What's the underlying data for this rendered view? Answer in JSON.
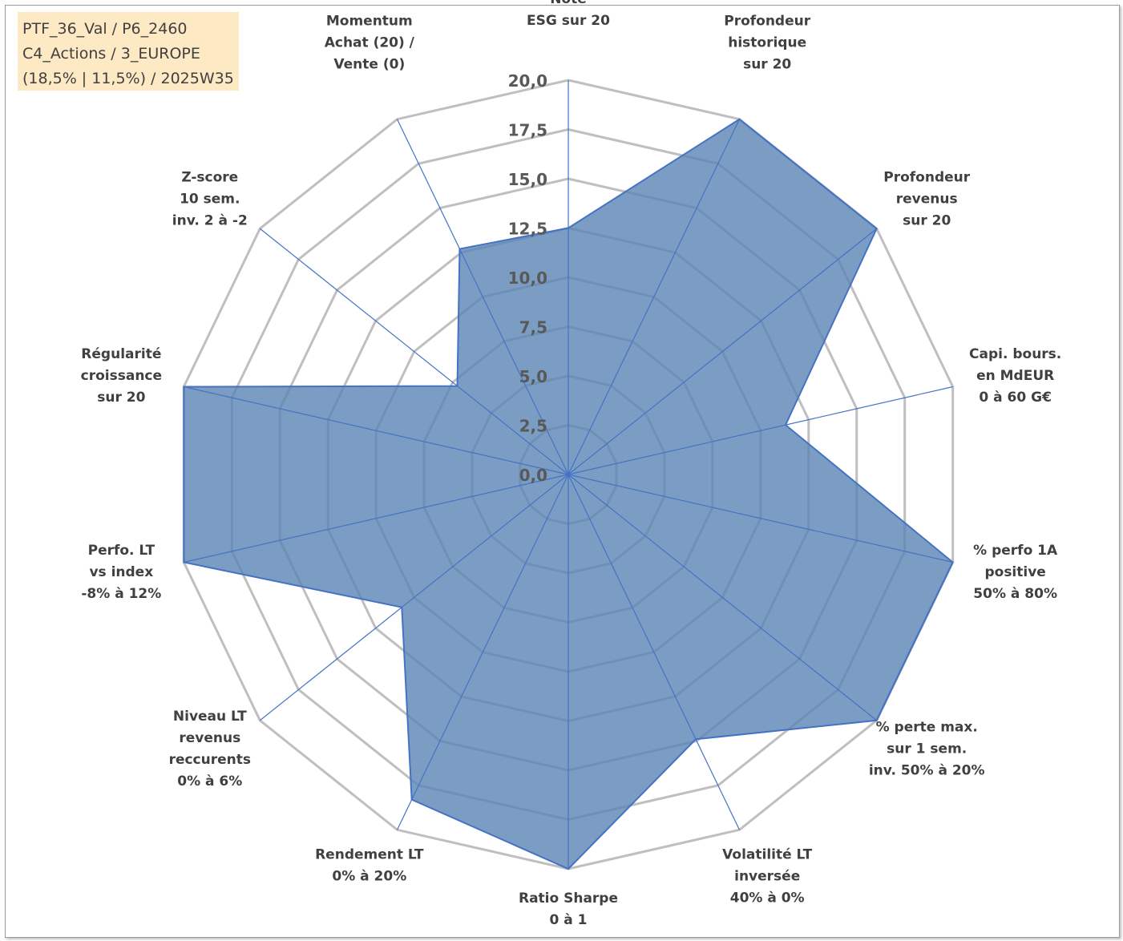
{
  "info_box": {
    "line1": "PTF_36_Val / P6_2460",
    "line2": "C4_Actions / 3_EUROPE",
    "line3": "(18,5% | 11,5%) / 2025W35"
  },
  "chart_data": {
    "type": "radar",
    "title": "",
    "rlim": [
      0,
      20
    ],
    "tick_values": [
      0,
      2.5,
      5,
      7.5,
      10,
      12.5,
      15,
      17.5,
      20
    ],
    "tick_labels": [
      "0,0",
      "2,5",
      "5,0",
      "7,5",
      "10,0",
      "12,5",
      "15,0",
      "17,5",
      "20,0"
    ],
    "grid": true,
    "axes": [
      {
        "label": [
          "Note",
          "ESG sur 20"
        ],
        "value": 12.5
      },
      {
        "label": [
          "Profondeur",
          "historique",
          "sur 20"
        ],
        "value": 20
      },
      {
        "label": [
          "Profondeur",
          "revenus",
          "sur 20"
        ],
        "value": 20
      },
      {
        "label": [
          "Capi. bours.",
          "en MdEUR",
          "0 à 60 G€"
        ],
        "value": 11.3
      },
      {
        "label": [
          "% perfo 1A",
          "positive",
          "50% à 80%"
        ],
        "value": 20
      },
      {
        "label": [
          "% perte max.",
          "sur 1 sem.",
          "inv. 50% à 20%"
        ],
        "value": 20
      },
      {
        "label": [
          "Volatilité LT",
          "inversée",
          "40% à 0%"
        ],
        "value": 14.9
      },
      {
        "label": [
          "Ratio Sharpe",
          "0 à 1"
        ],
        "value": 20
      },
      {
        "label": [
          "Rendement LT",
          "0% à 20%"
        ],
        "value": 18.3
      },
      {
        "label": [
          "Niveau LT",
          "revenus",
          "reccurents",
          "0% à 6%"
        ],
        "value": 10.8
      },
      {
        "label": [
          "Perfo. LT",
          "vs index",
          "-8% à 12%"
        ],
        "value": 20
      },
      {
        "label": [
          "Régularité",
          "croissance",
          "sur 20"
        ],
        "value": 20
      },
      {
        "label": [
          "Z-score",
          "10 sem.",
          "inv. 2 à -2"
        ],
        "value": 7.2
      },
      {
        "label": [
          "Momentum",
          "Achat (20) /",
          "Vente (0)"
        ],
        "value": 12.7
      }
    ],
    "series": [
      {
        "values": [
          12.5,
          20,
          20,
          11.3,
          20,
          20,
          14.9,
          20,
          18.3,
          10.8,
          20,
          20,
          7.2,
          12.7
        ]
      }
    ],
    "colors": {
      "fill": "#5b84b4",
      "fill_opacity": "0.8",
      "stroke": "#4472c4",
      "spoke": "#4472c4",
      "grid": "#bfbfbf",
      "outer_grid": "#bfbfbf"
    }
  }
}
